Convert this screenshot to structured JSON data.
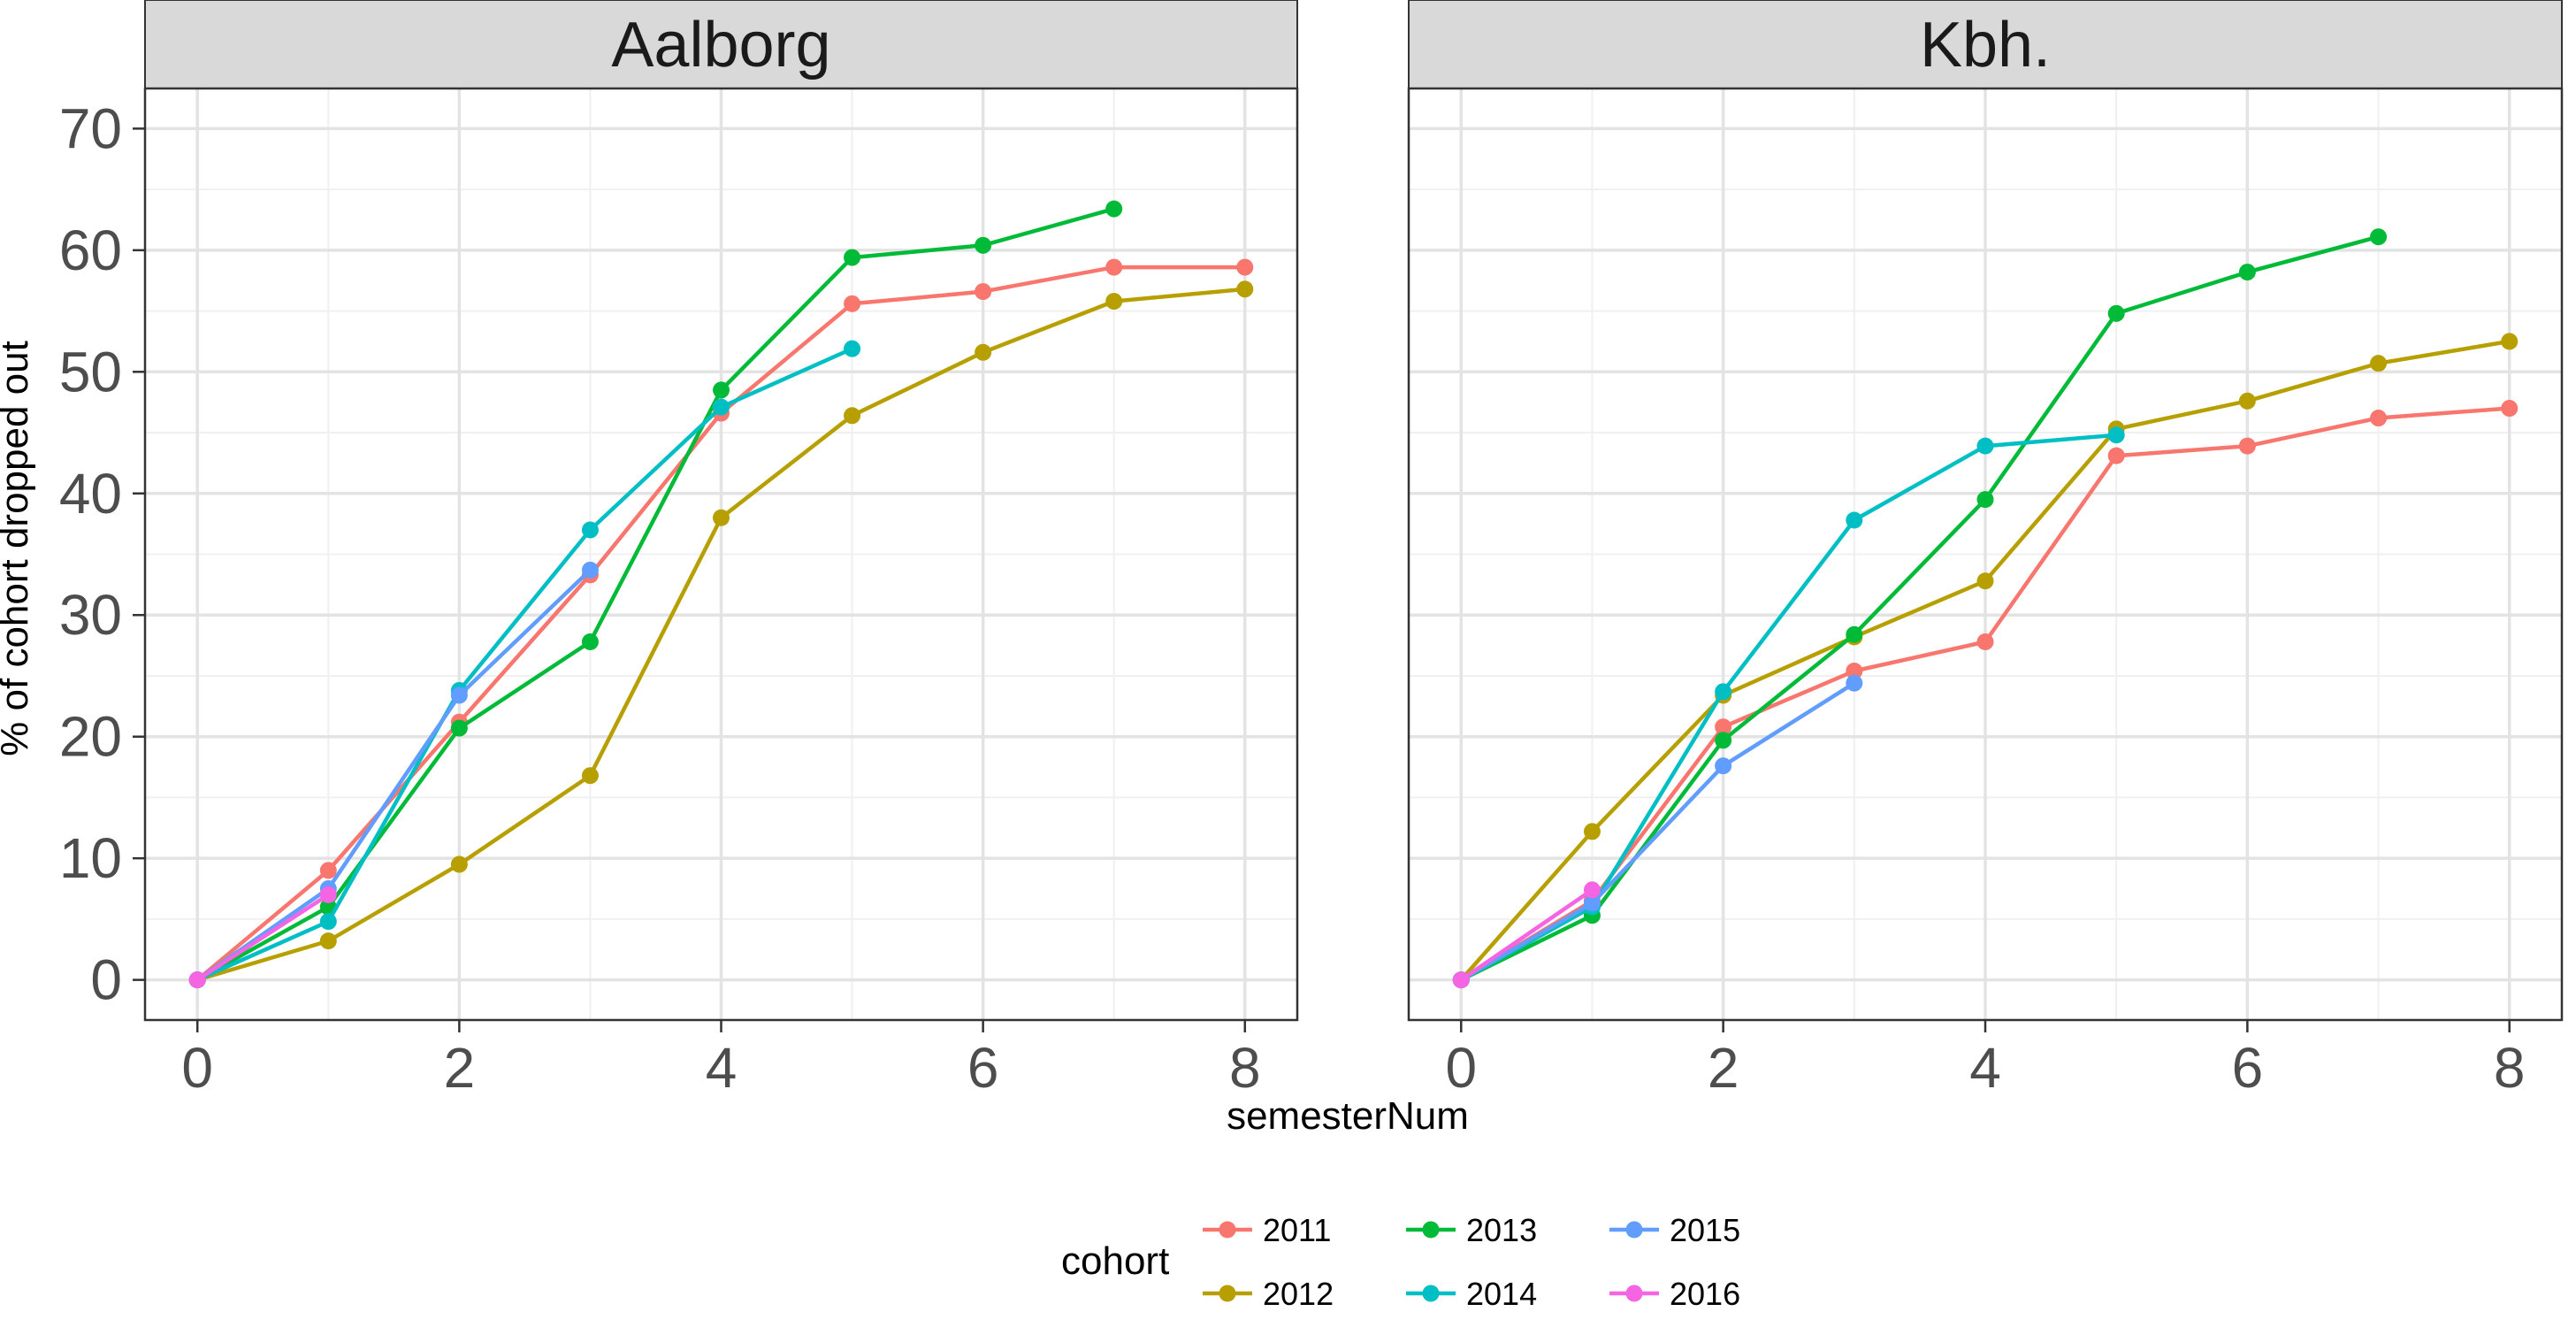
{
  "chart_data": {
    "type": "line",
    "xlabel": "semesterNum",
    "ylabel": "% of cohort dropped out",
    "xlim": [
      -0.4,
      8.4
    ],
    "ylim": [
      -3.3,
      73.3
    ],
    "x_ticks": [
      0,
      2,
      4,
      6,
      8
    ],
    "y_ticks": [
      0,
      10,
      20,
      30,
      40,
      50,
      60,
      70
    ],
    "grid": true,
    "legend": {
      "title": "cohort",
      "position": "bottom",
      "entries": [
        {
          "label": "2011",
          "color": "#F8766D"
        },
        {
          "label": "2012",
          "color": "#B79F00"
        },
        {
          "label": "2013",
          "color": "#00BA38"
        },
        {
          "label": "2014",
          "color": "#00BFC4"
        },
        {
          "label": "2015",
          "color": "#619CFF"
        },
        {
          "label": "2016",
          "color": "#F564E3"
        }
      ]
    },
    "panels": [
      {
        "title": "Aalborg",
        "series": [
          {
            "name": "2011",
            "color": "#F8766D",
            "x": [
              0,
              1,
              2,
              3,
              4,
              5,
              6,
              7,
              8
            ],
            "y": [
              0,
              9.0,
              21.2,
              33.3,
              46.6,
              55.6,
              56.6,
              58.6,
              58.6
            ]
          },
          {
            "name": "2012",
            "color": "#B79F00",
            "x": [
              0,
              1,
              2,
              3,
              4,
              5,
              6,
              7,
              8
            ],
            "y": [
              0,
              3.2,
              9.5,
              16.8,
              38.0,
              46.4,
              51.6,
              55.8,
              56.8
            ]
          },
          {
            "name": "2013",
            "color": "#00BA38",
            "x": [
              0,
              1,
              2,
              3,
              4,
              5,
              6,
              7
            ],
            "y": [
              0,
              6.0,
              20.7,
              27.8,
              48.5,
              59.4,
              60.4,
              63.4
            ]
          },
          {
            "name": "2014",
            "color": "#00BFC4",
            "x": [
              0,
              1,
              2,
              3,
              4,
              5
            ],
            "y": [
              0,
              4.8,
              23.8,
              37.0,
              47.1,
              51.9
            ]
          },
          {
            "name": "2015",
            "color": "#619CFF",
            "x": [
              0,
              1,
              2,
              3
            ],
            "y": [
              0,
              7.5,
              23.4,
              33.7
            ]
          },
          {
            "name": "2016",
            "color": "#F564E3",
            "x": [
              0,
              1
            ],
            "y": [
              0,
              7.0
            ]
          }
        ]
      },
      {
        "title": "Kbh.",
        "series": [
          {
            "name": "2011",
            "color": "#F8766D",
            "x": [
              0,
              1,
              2,
              3,
              4,
              5,
              6,
              7,
              8
            ],
            "y": [
              0,
              6.5,
              20.8,
              25.4,
              27.8,
              43.1,
              43.9,
              46.2,
              47.0
            ]
          },
          {
            "name": "2012",
            "color": "#B79F00",
            "x": [
              0,
              1,
              2,
              3,
              4,
              5,
              6,
              7,
              8
            ],
            "y": [
              0,
              12.2,
              23.4,
              28.2,
              32.8,
              45.3,
              47.6,
              50.7,
              52.5
            ]
          },
          {
            "name": "2013",
            "color": "#00BA38",
            "x": [
              0,
              1,
              2,
              3,
              4,
              5,
              6,
              7
            ],
            "y": [
              0,
              5.3,
              19.7,
              28.4,
              39.5,
              54.8,
              58.2,
              61.1
            ]
          },
          {
            "name": "2014",
            "color": "#00BFC4",
            "x": [
              0,
              1,
              2,
              3,
              4,
              5
            ],
            "y": [
              0,
              6.0,
              23.7,
              37.8,
              43.9,
              44.8
            ]
          },
          {
            "name": "2015",
            "color": "#619CFF",
            "x": [
              0,
              1,
              2,
              3
            ],
            "y": [
              0,
              6.3,
              17.6,
              24.4
            ]
          },
          {
            "name": "2016",
            "color": "#F564E3",
            "x": [
              0,
              1
            ],
            "y": [
              0,
              7.4
            ]
          }
        ]
      }
    ]
  }
}
